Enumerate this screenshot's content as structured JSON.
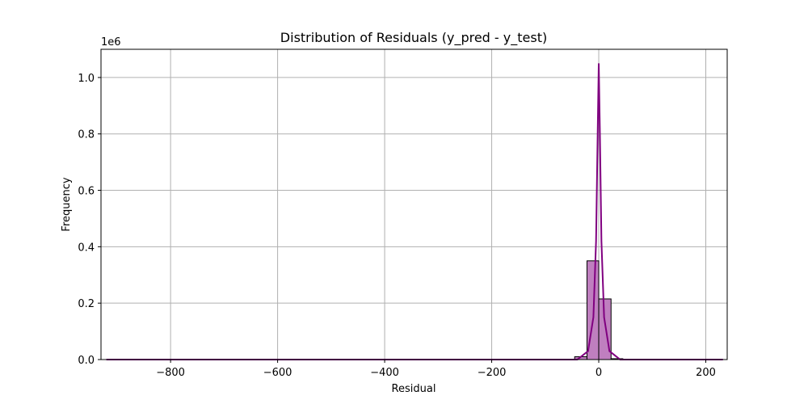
{
  "chart_data": {
    "type": "bar",
    "title": "Distribution of Residuals (y_pred - y_test)",
    "xlabel": "Residual",
    "ylabel": "Frequency",
    "y_offset_label": "1e6",
    "xlim": [
      -930,
      240
    ],
    "ylim": [
      0,
      1.1
    ],
    "x_ticks": [
      -800,
      -600,
      -400,
      -200,
      0,
      200
    ],
    "x_tick_labels": [
      "−800",
      "−600",
      "−400",
      "−200",
      "0",
      "200"
    ],
    "y_ticks": [
      0.0,
      0.2,
      0.4,
      0.6,
      0.8,
      1.0
    ],
    "y_tick_labels": [
      "0.0",
      "0.2",
      "0.4",
      "0.6",
      "0.8",
      "1.0"
    ],
    "grid": true,
    "bar_color": "#bf7fbf",
    "edge_color": "#000000",
    "kde_color": "#800080",
    "bins": [
      {
        "x0": -45,
        "x1": -22,
        "value": 0.01
      },
      {
        "x0": -22,
        "x1": 0,
        "value": 0.35
      },
      {
        "x0": 0,
        "x1": 23,
        "value": 0.215
      },
      {
        "x0": 23,
        "x1": 45,
        "value": 0.003
      }
    ],
    "kde": [
      [
        -920,
        0
      ],
      [
        -300,
        0
      ],
      [
        -40,
        0.0
      ],
      [
        -20,
        0.03
      ],
      [
        -10,
        0.15
      ],
      [
        -5,
        0.42
      ],
      [
        -2,
        0.8
      ],
      [
        0,
        1.05
      ],
      [
        2,
        0.82
      ],
      [
        5,
        0.42
      ],
      [
        10,
        0.15
      ],
      [
        20,
        0.03
      ],
      [
        40,
        0.0
      ],
      [
        232,
        0
      ]
    ]
  }
}
